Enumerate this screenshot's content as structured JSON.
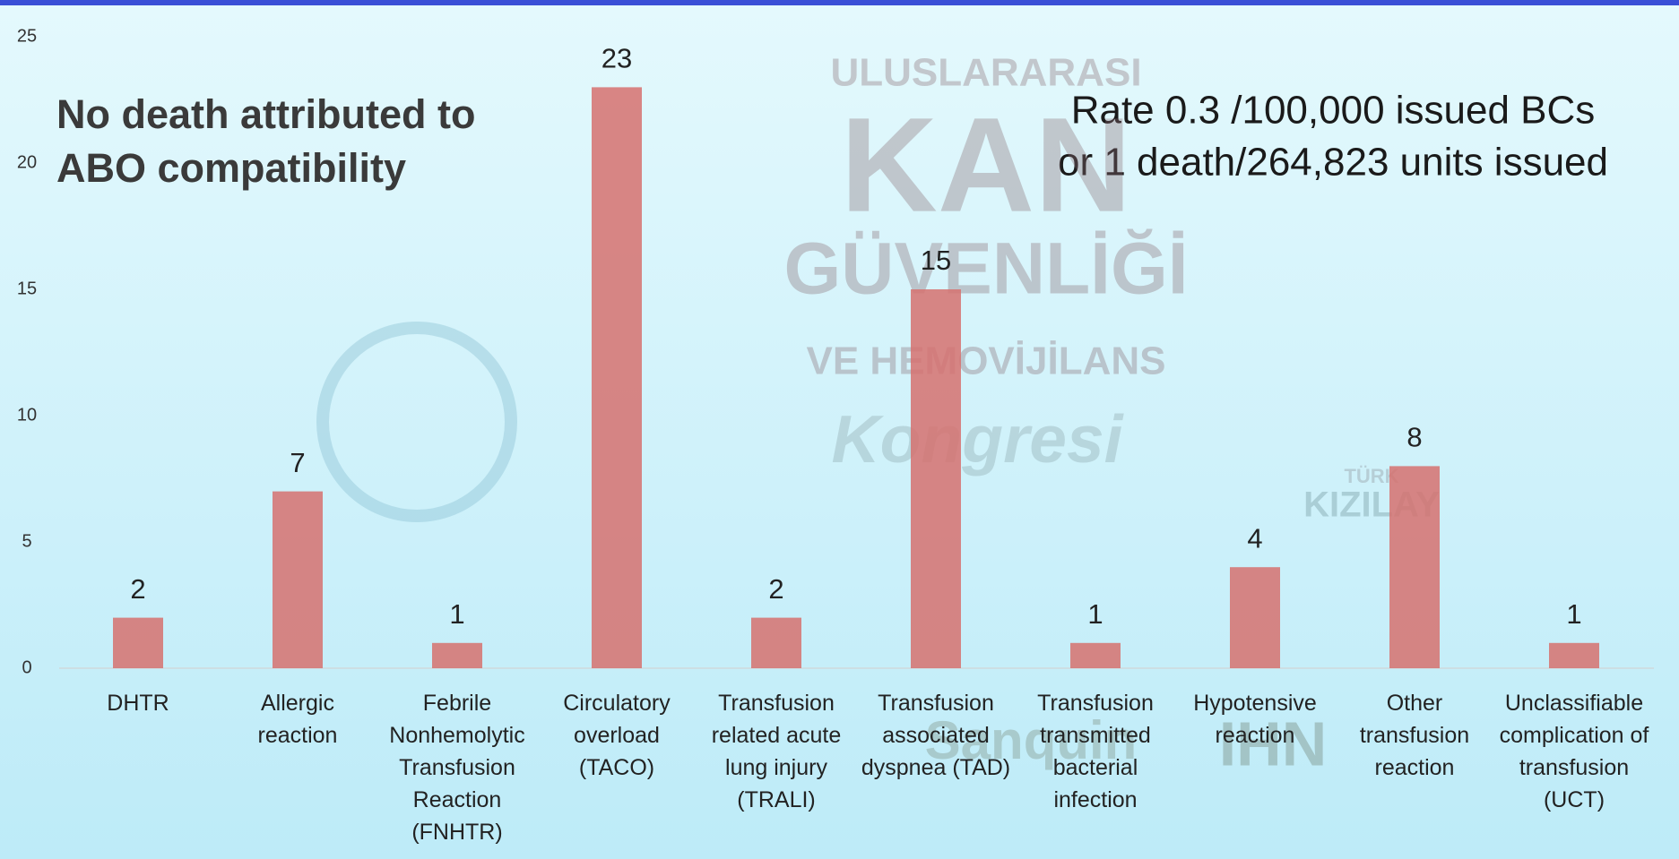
{
  "chart_data": {
    "type": "bar",
    "title": "No death attributed to ABO compatibility",
    "annotation": [
      "Rate 0.3 /100,000 issued BCs",
      "or 1 death/264,823 units issued"
    ],
    "categories": [
      "DHTR",
      "Allergic reaction",
      "Febrile Nonhemolytic Transfusion Reaction (FNHTR)",
      "Circulatory overload (TACO)",
      "Transfusion related acute lung injury (TRALI)",
      "Transfusion associated dyspnea (TAD)",
      "Transfusion transmitted bacterial infection",
      "Hypotensive reaction",
      "Other transfusion reaction",
      "Unclassifiable complication of transfusion (UCT)"
    ],
    "values": [
      2,
      7,
      1,
      23,
      2,
      15,
      1,
      4,
      8,
      1
    ],
    "color": "#d6716f",
    "ylim": [
      0,
      25
    ],
    "yticks": [
      0,
      5,
      10,
      15,
      20,
      25
    ]
  },
  "watermarks": [
    "ULUSLARARASI",
    "KAN",
    "GÜVENLİĞİ",
    "VE HEMOVİJİLANS",
    "Kongresi",
    "TÜRK",
    "KIZILAY",
    "Sanquin",
    "IHN"
  ]
}
